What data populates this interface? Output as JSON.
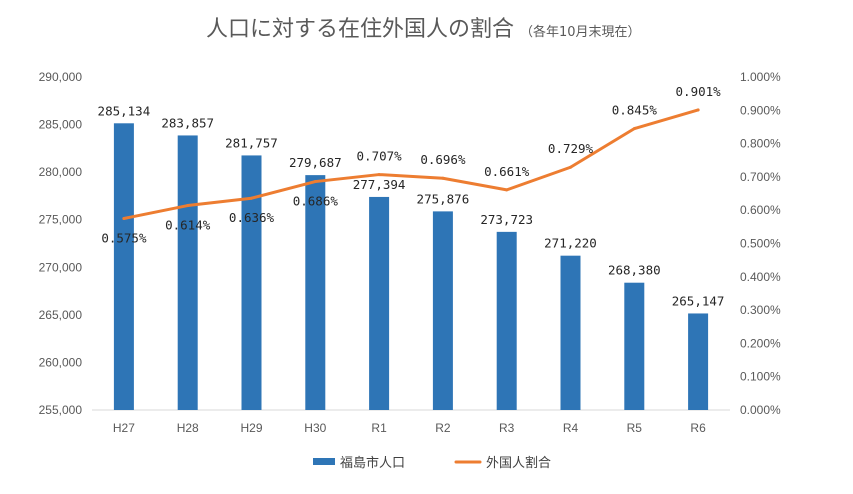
{
  "chart_data": {
    "type": "bar+line",
    "title": "人口に対する在住外国人の割合",
    "subtitle": "（各年10月末現在）",
    "categories": [
      "H27",
      "H28",
      "H29",
      "H30",
      "R1",
      "R2",
      "R3",
      "R4",
      "R5",
      "R6"
    ],
    "series": [
      {
        "name": "福島市人口",
        "type": "bar",
        "axis": "left",
        "color": "#2e75b6",
        "values": [
          285134,
          283857,
          281757,
          279687,
          277394,
          275876,
          273723,
          271220,
          268380,
          265147
        ],
        "labels": [
          "285,134",
          "283,857",
          "281,757",
          "279,687",
          "277,394",
          "275,876",
          "273,723",
          "271,220",
          "268,380",
          "265,147"
        ]
      },
      {
        "name": "外国人割合",
        "type": "line",
        "axis": "right",
        "color": "#ed7d31",
        "values": [
          0.575,
          0.614,
          0.636,
          0.686,
          0.707,
          0.696,
          0.661,
          0.729,
          0.845,
          0.901
        ],
        "labels": [
          "0.575%",
          "0.614%",
          "0.636%",
          "0.686%",
          "0.707%",
          "0.696%",
          "0.661%",
          "0.729%",
          "0.845%",
          "0.901%"
        ]
      }
    ],
    "left_axis": {
      "min": 255000,
      "max": 290000,
      "step": 5000,
      "tick_labels": [
        "255,000",
        "260,000",
        "265,000",
        "270,000",
        "275,000",
        "280,000",
        "285,000",
        "290,000"
      ]
    },
    "right_axis": {
      "min": 0,
      "max": 1.0,
      "step": 0.1,
      "tick_labels": [
        "0.000%",
        "0.100%",
        "0.200%",
        "0.300%",
        "0.400%",
        "0.500%",
        "0.600%",
        "0.700%",
        "0.800%",
        "0.900%",
        "1.000%"
      ]
    },
    "grid": false,
    "legend": "bottom"
  }
}
